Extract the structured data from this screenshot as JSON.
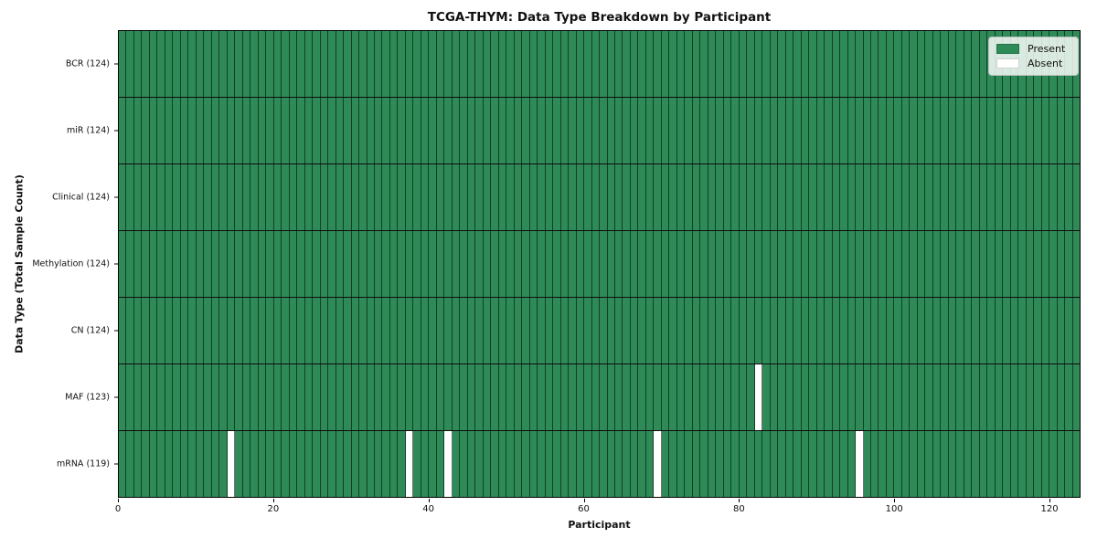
{
  "chart_data": {
    "type": "heatmap",
    "title": "TCGA-THYM: Data Type Breakdown by Participant",
    "xlabel": "Participant",
    "ylabel": "Data Type (Total Sample Count)",
    "x_ticks": [
      0,
      20,
      40,
      60,
      80,
      100,
      120
    ],
    "xlim": [
      0,
      124
    ],
    "n_participants": 124,
    "grid": true,
    "legend_position": "upper-right",
    "legend": [
      {
        "label": "Present",
        "color": "#2e8b57"
      },
      {
        "label": "Absent",
        "color": "#ffffff"
      }
    ],
    "rows": [
      {
        "label": "BCR (124)",
        "data_type": "BCR",
        "total_samples": 124,
        "present_count": 124,
        "absent_participants": []
      },
      {
        "label": "miR (124)",
        "data_type": "miR",
        "total_samples": 124,
        "present_count": 124,
        "absent_participants": []
      },
      {
        "label": "Clinical (124)",
        "data_type": "Clinical",
        "total_samples": 124,
        "present_count": 124,
        "absent_participants": []
      },
      {
        "label": "Methylation (124)",
        "data_type": "Methylation",
        "total_samples": 124,
        "present_count": 124,
        "absent_participants": []
      },
      {
        "label": "CN (124)",
        "data_type": "CN",
        "total_samples": 124,
        "present_count": 124,
        "absent_participants": []
      },
      {
        "label": "MAF (123)",
        "data_type": "MAF",
        "total_samples": 123,
        "present_count": 123,
        "absent_participants": [
          82
        ]
      },
      {
        "label": "mRNA (119)",
        "data_type": "mRNA",
        "total_samples": 119,
        "present_count": 119,
        "absent_participants": [
          14,
          37,
          42,
          69,
          95
        ]
      }
    ],
    "colors": {
      "present": "#2e8b57",
      "absent": "#ffffff",
      "cell_border": "rgba(0,0,0,0.55)",
      "row_border": "#0d0d0d",
      "axis": "#000000"
    }
  }
}
